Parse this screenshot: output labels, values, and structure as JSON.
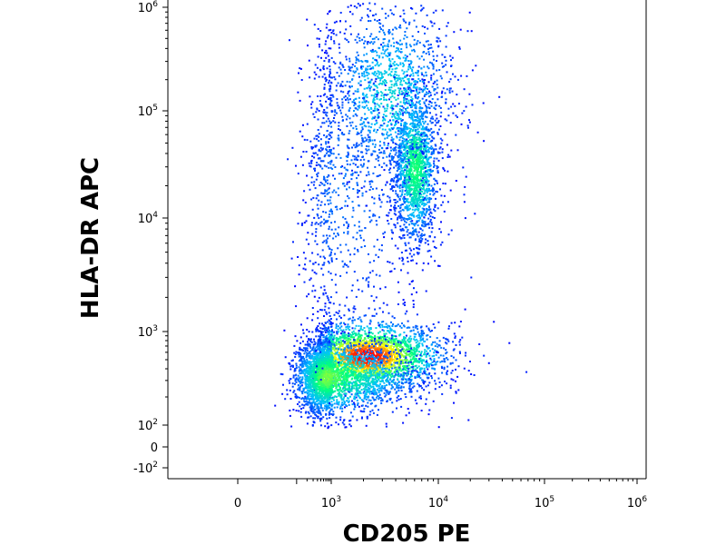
{
  "chart_data": {
    "type": "scatter",
    "subtype": "flow-cytometry density plot (biexponential axes)",
    "xlabel": "CD205 PE",
    "ylabel": "HLA-DR APC",
    "x_ticks": [
      {
        "value": 0,
        "base": "0",
        "exp": ""
      },
      {
        "value": 1000,
        "base": "10",
        "exp": "3"
      },
      {
        "value": 10000,
        "base": "10",
        "exp": "4"
      },
      {
        "value": 100000,
        "base": "10",
        "exp": "5"
      },
      {
        "value": 1000000,
        "base": "10",
        "exp": "6"
      }
    ],
    "y_ticks": [
      {
        "value": -100,
        "base": "-10",
        "exp": "2"
      },
      {
        "value": 0,
        "base": "0",
        "exp": ""
      },
      {
        "value": 100,
        "base": "10",
        "exp": "2"
      },
      {
        "value": 1000,
        "base": "10",
        "exp": "3"
      },
      {
        "value": 10000,
        "base": "10",
        "exp": "4"
      },
      {
        "value": 100000,
        "base": "10",
        "exp": "5"
      },
      {
        "value": 1000000,
        "base": "10",
        "exp": "6"
      }
    ],
    "xlim": [
      -300,
      1200000
    ],
    "ylim": [
      -150,
      1200000
    ],
    "color_scale": [
      "#0000ff",
      "#00bfff",
      "#00ff80",
      "#ffff00",
      "#ff0000"
    ],
    "populations": [
      {
        "center_x": 2100,
        "center_y": 550,
        "spread_x_decades": 0.35,
        "spread_y_decades": 0.18,
        "weight": 0.3,
        "peak_density": 1.0
      },
      {
        "center_x": 700,
        "center_y": 330,
        "spread_x_decades": 0.45,
        "spread_y_decades": 0.2,
        "weight": 0.28,
        "peak_density": 0.6
      },
      {
        "center_x": 6000,
        "center_y": 30000,
        "spread_x_decades": 0.1,
        "spread_y_decades": 0.35,
        "weight": 0.18,
        "peak_density": 0.5
      },
      {
        "center_x": 3500,
        "center_y": 150000,
        "spread_x_decades": 0.3,
        "spread_y_decades": 0.45,
        "weight": 0.14,
        "peak_density": 0.3
      },
      {
        "center_x": 1200,
        "center_y": 20000,
        "spread_x_decades": 0.45,
        "spread_y_decades": 0.7,
        "weight": 0.1,
        "peak_density": 0.12
      }
    ]
  }
}
